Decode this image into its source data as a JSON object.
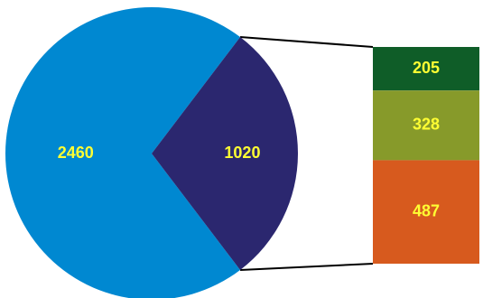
{
  "chart_data": {
    "type": "bar-of-pie",
    "pie": {
      "values": [
        2460,
        1020
      ],
      "labels": [
        "2460",
        "1020"
      ],
      "colors": [
        "#0088d1",
        "#2b276f"
      ],
      "exploded_index": 1
    },
    "bar": {
      "values": [
        205,
        328,
        487
      ],
      "labels": [
        "205",
        "328",
        "487"
      ],
      "colors": [
        "#0f5d28",
        "#879a2a",
        "#d75a1e"
      ]
    },
    "label_color": "#ffff33",
    "connector_color": "#000000",
    "legend": "none",
    "title": "",
    "xlabel": "",
    "ylabel": ""
  }
}
